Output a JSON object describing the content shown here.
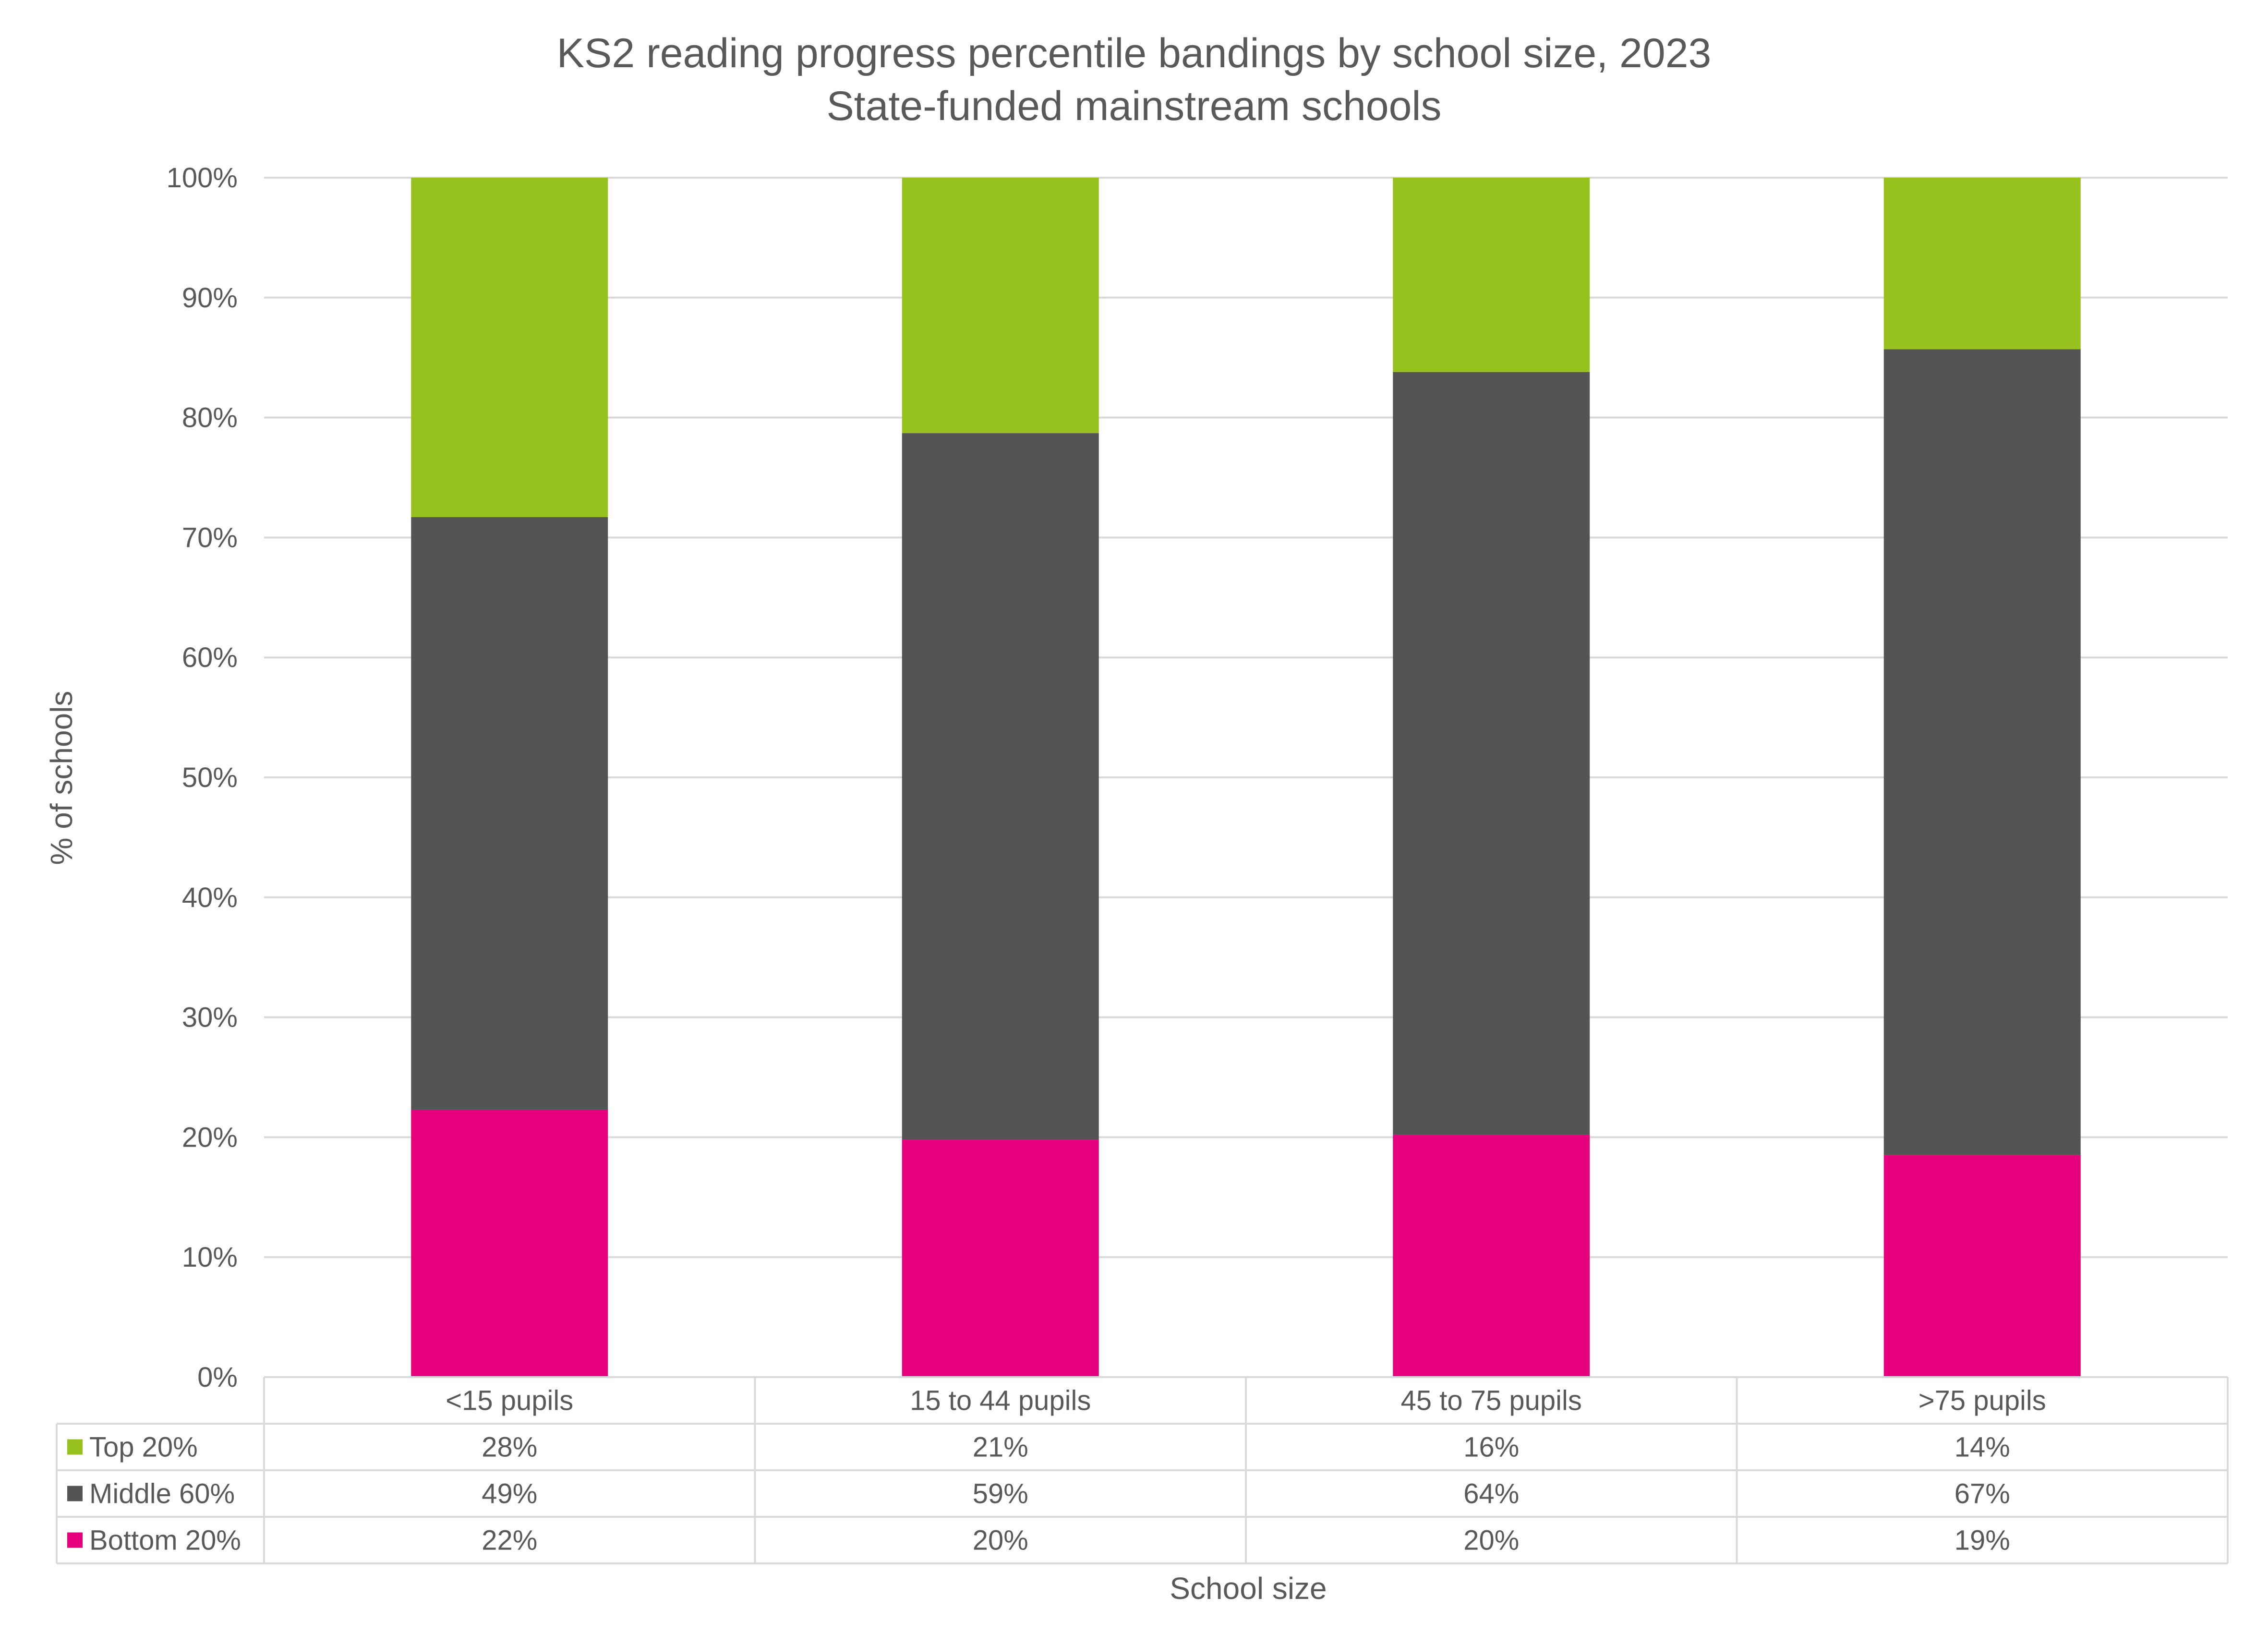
{
  "chart_data": {
    "type": "bar",
    "stacked": true,
    "title": "KS2 reading progress percentile bandings by school size, 2023",
    "subtitle": "State-funded mainstream schools",
    "xlabel": "School size",
    "ylabel": "% of schools",
    "ylim": [
      0,
      100
    ],
    "yticks": [
      "0%",
      "10%",
      "20%",
      "30%",
      "40%",
      "50%",
      "60%",
      "70%",
      "80%",
      "90%",
      "100%"
    ],
    "grid": true,
    "legend": "data-table",
    "categories": [
      "<15 pupils",
      "15 to 44 pupils",
      "45 to 75 pupils",
      ">75 pupils"
    ],
    "series": [
      {
        "name": "Bottom 20%",
        "color": "#e6007e",
        "values": [
          22.3,
          19.8,
          20.2,
          18.5
        ],
        "labels": [
          "22%",
          "20%",
          "20%",
          "19%"
        ]
      },
      {
        "name": "Middle 60%",
        "color": "#545454",
        "values": [
          49.4,
          58.9,
          63.6,
          67.2
        ],
        "labels": [
          "49%",
          "59%",
          "64%",
          "67%"
        ]
      },
      {
        "name": "Top 20%",
        "color": "#97c21e",
        "values": [
          28.3,
          21.3,
          16.2,
          14.3
        ],
        "labels": [
          "28%",
          "21%",
          "16%",
          "14%"
        ]
      }
    ],
    "table_row_order": [
      "Top 20%",
      "Middle 60%",
      "Bottom 20%"
    ]
  }
}
